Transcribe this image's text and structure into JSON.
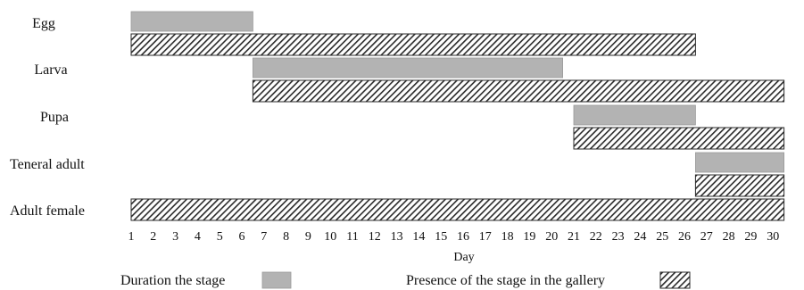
{
  "chart_data": {
    "type": "bar",
    "subtype": "gantt",
    "title": "",
    "xlabel": "Day",
    "ylabel": "",
    "xlim": [
      1,
      30
    ],
    "x_ticks": [
      "1",
      "2",
      "3",
      "4",
      "5",
      "6",
      "7",
      "8",
      "9",
      "10",
      "11",
      "12",
      "13",
      "14",
      "15",
      "16",
      "17",
      "18",
      "19",
      "20",
      "21",
      "22",
      "23",
      "24",
      "25",
      "26",
      "27",
      "28",
      "29",
      "30"
    ],
    "categories": [
      "Egg",
      "Larva",
      "Pupa",
      "Teneral adult",
      "Adult female"
    ],
    "series": [
      {
        "name": "Duration the stage",
        "style": "solid",
        "color": "#b3b3b3",
        "ranges": [
          {
            "category": "Egg",
            "start": 1,
            "end": 6.5
          },
          {
            "category": "Larva",
            "start": 6.5,
            "end": 20.5
          },
          {
            "category": "Pupa",
            "start": 21,
            "end": 26.5
          },
          {
            "category": "Teneral adult",
            "start": 26.5,
            "end": 30.5
          }
        ]
      },
      {
        "name": "Presence of the stage in the gallery",
        "style": "hatched",
        "color": "#3a3a3a",
        "ranges": [
          {
            "category": "Egg",
            "start": 1,
            "end": 26.5
          },
          {
            "category": "Larva",
            "start": 6.5,
            "end": 30.5
          },
          {
            "category": "Pupa",
            "start": 21,
            "end": 30.5
          },
          {
            "category": "Teneral adult",
            "start": 26.5,
            "end": 30.5
          },
          {
            "category": "Adult female",
            "start": 1,
            "end": 30.5
          }
        ]
      }
    ],
    "legend": {
      "placement": "bottom",
      "entries": [
        "Duration the stage",
        "Presence of the stage in the gallery"
      ]
    }
  }
}
